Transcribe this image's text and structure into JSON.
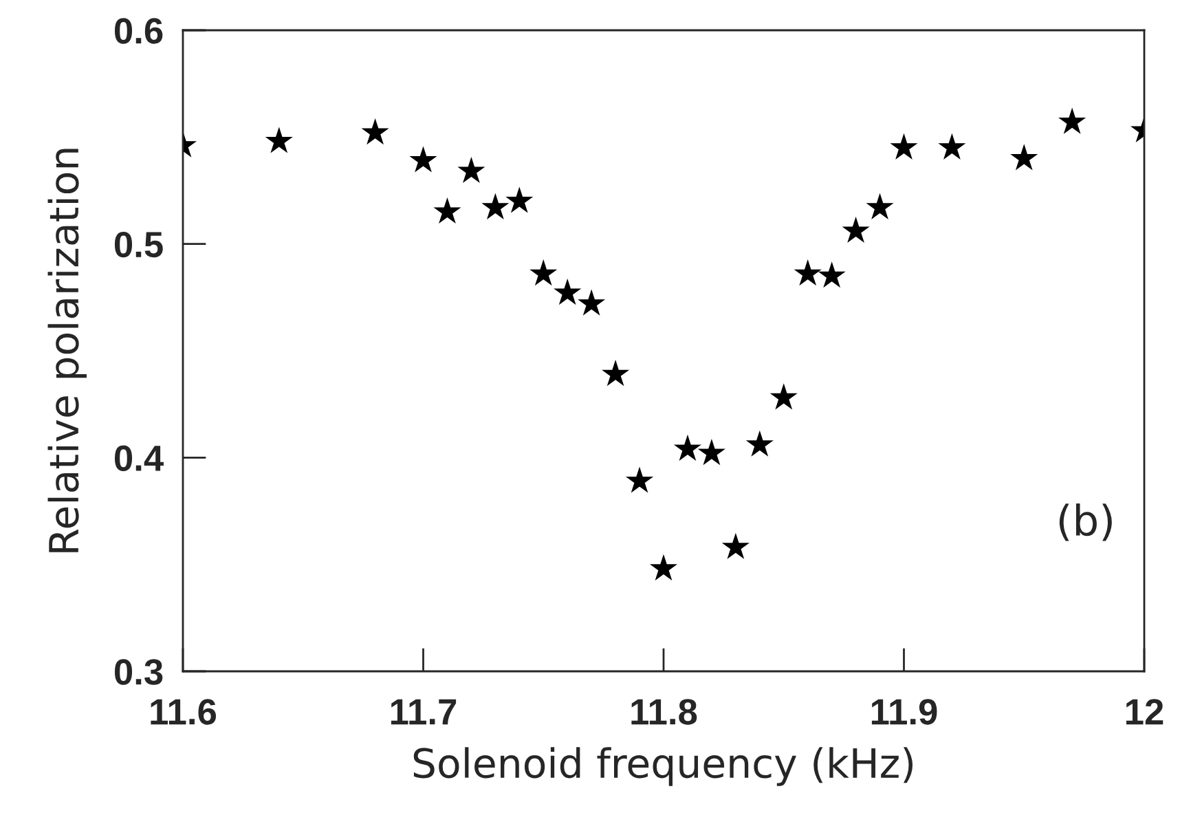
{
  "chart_data": {
    "type": "scatter",
    "xlabel": "Solenoid frequency (kHz)",
    "ylabel": "Relative polarization",
    "annotations": [
      "(b)"
    ],
    "x": [
      11.6,
      11.64,
      11.68,
      11.7,
      11.71,
      11.72,
      11.73,
      11.74,
      11.75,
      11.76,
      11.77,
      11.78,
      11.79,
      11.8,
      11.81,
      11.82,
      11.83,
      11.84,
      11.85,
      11.86,
      11.87,
      11.88,
      11.89,
      11.9,
      11.92,
      11.95,
      11.97,
      12.0
    ],
    "series": [
      {
        "color": "#000000",
        "values": [
          0.546,
          0.548,
          0.552,
          0.539,
          0.515,
          0.534,
          0.517,
          0.52,
          0.486,
          0.477,
          0.472,
          0.439,
          0.389,
          0.348,
          0.404,
          0.402,
          0.358,
          0.406,
          0.428,
          0.486,
          0.485,
          0.506,
          0.517,
          0.545,
          0.545,
          0.54,
          0.557,
          0.553
        ]
      }
    ],
    "xlim": [
      11.6,
      12.0
    ],
    "ylim": [
      0.3,
      0.6
    ],
    "xticks": [
      11.6,
      11.7,
      11.8,
      11.9,
      {
        "value": 12.0,
        "label": "12"
      }
    ],
    "yticks": [
      0.3,
      0.4,
      0.5,
      0.6
    ],
    "marker": "star",
    "grid": false,
    "legend": false
  }
}
